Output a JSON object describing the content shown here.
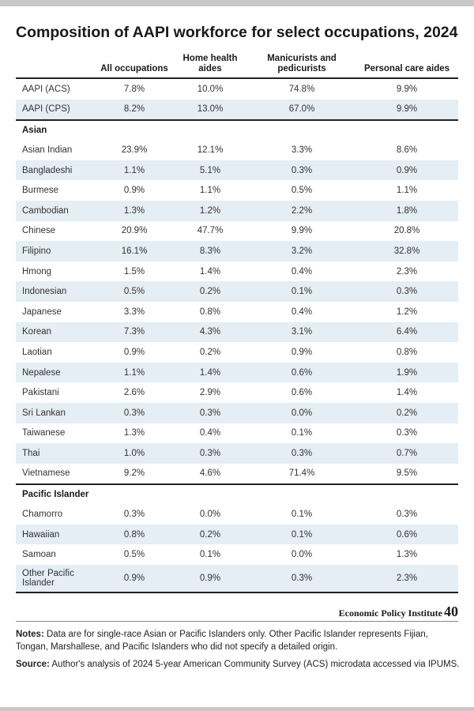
{
  "title": "Composition of AAPI workforce for select occupations, 2024",
  "table": {
    "row_header": "",
    "columns": [
      "All occupations",
      "Home health aides",
      "Manicurists and pedicurists",
      "Personal care aides"
    ],
    "sections": [
      {
        "heading": "",
        "rows": [
          {
            "label": "AAPI (ACS)",
            "values": [
              "7.8%",
              "10.0%",
              "74.8%",
              "9.9%"
            ]
          },
          {
            "label": "AAPI (CPS)",
            "values": [
              "8.2%",
              "13.0%",
              "67.0%",
              "9.9%"
            ]
          }
        ]
      },
      {
        "heading": "Asian",
        "rows": [
          {
            "label": "Asian Indian",
            "values": [
              "23.9%",
              "12.1%",
              "3.3%",
              "8.6%"
            ]
          },
          {
            "label": "Bangladeshi",
            "values": [
              "1.1%",
              "5.1%",
              "0.3%",
              "0.9%"
            ]
          },
          {
            "label": "Burmese",
            "values": [
              "0.9%",
              "1.1%",
              "0.5%",
              "1.1%"
            ]
          },
          {
            "label": "Cambodian",
            "values": [
              "1.3%",
              "1.2%",
              "2.2%",
              "1.8%"
            ]
          },
          {
            "label": "Chinese",
            "values": [
              "20.9%",
              "47.7%",
              "9.9%",
              "20.8%"
            ]
          },
          {
            "label": "Filipino",
            "values": [
              "16.1%",
              "8.3%",
              "3.2%",
              "32.8%"
            ]
          },
          {
            "label": "Hmong",
            "values": [
              "1.5%",
              "1.4%",
              "0.4%",
              "2.3%"
            ]
          },
          {
            "label": "Indonesian",
            "values": [
              "0.5%",
              "0.2%",
              "0.1%",
              "0.3%"
            ]
          },
          {
            "label": "Japanese",
            "values": [
              "3.3%",
              "0.8%",
              "0.4%",
              "1.2%"
            ]
          },
          {
            "label": "Korean",
            "values": [
              "7.3%",
              "4.3%",
              "3.1%",
              "6.4%"
            ]
          },
          {
            "label": "Laotian",
            "values": [
              "0.9%",
              "0.2%",
              "0.9%",
              "0.8%"
            ]
          },
          {
            "label": "Nepalese",
            "values": [
              "1.1%",
              "1.4%",
              "0.6%",
              "1.9%"
            ]
          },
          {
            "label": "Pakistani",
            "values": [
              "2.6%",
              "2.9%",
              "0.6%",
              "1.4%"
            ]
          },
          {
            "label": "Sri Lankan",
            "values": [
              "0.3%",
              "0.3%",
              "0.0%",
              "0.2%"
            ]
          },
          {
            "label": "Taiwanese",
            "values": [
              "1.3%",
              "0.4%",
              "0.1%",
              "0.3%"
            ]
          },
          {
            "label": "Thai",
            "values": [
              "1.0%",
              "0.3%",
              "0.3%",
              "0.7%"
            ]
          },
          {
            "label": "Vietnamese",
            "values": [
              "9.2%",
              "4.6%",
              "71.4%",
              "9.5%"
            ]
          }
        ]
      },
      {
        "heading": "Pacific Islander",
        "rows": [
          {
            "label": "Chamorro",
            "values": [
              "0.3%",
              "0.0%",
              "0.1%",
              "0.3%"
            ]
          },
          {
            "label": "Hawaiian",
            "values": [
              "0.8%",
              "0.2%",
              "0.1%",
              "0.6%"
            ]
          },
          {
            "label": "Samoan",
            "values": [
              "0.5%",
              "0.1%",
              "0.0%",
              "1.3%"
            ]
          },
          {
            "label": "Other Pacific Islander",
            "values": [
              "0.9%",
              "0.9%",
              "0.3%",
              "2.3%"
            ]
          }
        ]
      }
    ]
  },
  "branding": {
    "name": "Economic Policy Institute",
    "anniversary": "40"
  },
  "notes": {
    "notes_label": "Notes:",
    "notes_text": " Data are for single-race Asian or Pacific Islanders only. Other Pacific Islander represents Fijian, Tongan, Marshallese, and Pacific Islanders who did not specify a detailed origin.",
    "source_label": "Source:",
    "source_text": " Author's analysis of 2024 5-year American Community Survey (ACS) microdata accessed via IPUMS."
  },
  "colors": {
    "row_shade": "#e5edf5",
    "rule": "#222222",
    "bars": "#c8c8c8"
  }
}
